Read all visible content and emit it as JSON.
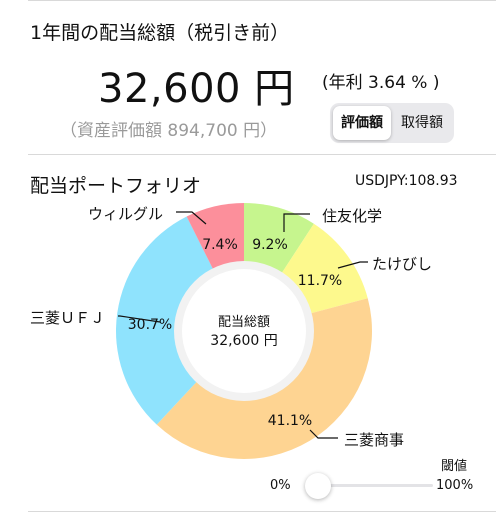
{
  "header": {
    "title": "1年間の配当総額（税引き前）",
    "total": "32,600 円",
    "yield": "(年利 3.64 % )",
    "asset_value": "（資産評価額 894,700 円）"
  },
  "toggle": {
    "options": [
      "評価額",
      "取得額"
    ],
    "selected": "評価額"
  },
  "portfolio": {
    "title": "配当ポートフォリオ",
    "fx": "USDJPY:108.93",
    "center_title": "配当総額",
    "center_value": "32,600 円"
  },
  "chart_data": {
    "type": "pie",
    "categories": [
      "住友化学",
      "たけびし",
      "三菱商事",
      "三菱ＵＦＪ",
      "ウィルグル"
    ],
    "values": [
      9.2,
      11.7,
      41.1,
      30.7,
      7.4
    ],
    "labels": [
      "9.2%",
      "11.7%",
      "41.1%",
      "30.7%",
      "7.4%"
    ],
    "colors": [
      "#c6f58e",
      "#fdf98d",
      "#fed492",
      "#8fe3fd",
      "#fc8f9b"
    ]
  },
  "threshold": {
    "label": "閾値",
    "min_label": "0%",
    "max_label": "100%",
    "value": 0
  }
}
